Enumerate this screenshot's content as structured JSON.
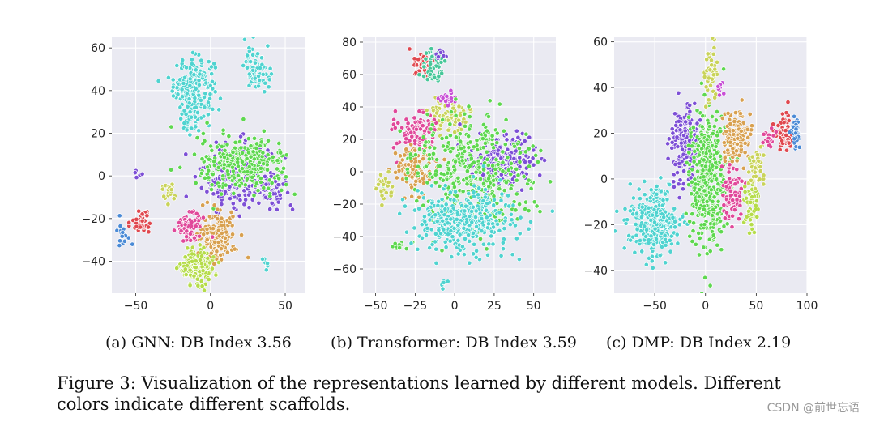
{
  "palette": {
    "cyan": "#4fd3d0",
    "purple": "#7d4fd6",
    "green": "#5ed84f",
    "orange": "#d8a04f",
    "lime": "#b5dc4a",
    "pink": "#e0489a",
    "red": "#e0484f",
    "blue": "#4a8ad6",
    "yellowgreen": "#c9d35a",
    "teal": "#47c79a",
    "magenta": "#c84fd6"
  },
  "chart_data": [
    {
      "type": "scatter",
      "caption": "(a) GNN: DB Index 3.56",
      "xlim": [
        -66,
        63
      ],
      "ylim": [
        -55,
        65
      ],
      "xticks": [
        -50,
        0,
        50
      ],
      "xtick_labels": [
        "−50",
        "0",
        "50"
      ],
      "yticks": [
        -40,
        -20,
        0,
        20,
        40,
        60
      ],
      "ytick_labels": [
        "−40",
        "−20",
        "0",
        "20",
        "40",
        "60"
      ],
      "grid": true,
      "clusters": [
        {
          "color": "cyan",
          "cx": -11,
          "cy": 42,
          "sx": 8,
          "sy": 8,
          "n": 200
        },
        {
          "color": "cyan",
          "cx": -14,
          "cy": 27,
          "sx": 4,
          "sy": 4,
          "n": 40
        },
        {
          "color": "cyan",
          "cx": 31,
          "cy": 50,
          "sx": 5,
          "sy": 6,
          "n": 80
        },
        {
          "color": "cyan",
          "cx": 37,
          "cy": -41,
          "sx": 1.5,
          "sy": 1.5,
          "n": 8
        },
        {
          "color": "purple",
          "cx": 18,
          "cy": 0,
          "sx": 14,
          "sy": 9,
          "n": 230
        },
        {
          "color": "purple",
          "cx": 40,
          "cy": -5,
          "sx": 6,
          "sy": 6,
          "n": 60
        },
        {
          "color": "purple",
          "cx": -49,
          "cy": 1,
          "sx": 1.5,
          "sy": 1.5,
          "n": 5
        },
        {
          "color": "green",
          "cx": 22,
          "cy": 5,
          "sx": 18,
          "sy": 8,
          "n": 280
        },
        {
          "color": "orange",
          "cx": 5,
          "cy": -28,
          "sx": 7,
          "sy": 7,
          "n": 150
        },
        {
          "color": "lime",
          "cx": -9,
          "cy": -42,
          "sx": 7,
          "sy": 5,
          "n": 140
        },
        {
          "color": "pink",
          "cx": -14,
          "cy": -24,
          "sx": 5,
          "sy": 4,
          "n": 80
        },
        {
          "color": "red",
          "cx": -46,
          "cy": -22,
          "sx": 4,
          "sy": 3,
          "n": 40
        },
        {
          "color": "blue",
          "cx": -58,
          "cy": -27,
          "sx": 3,
          "sy": 3,
          "n": 20
        },
        {
          "color": "yellowgreen",
          "cx": -27,
          "cy": -7,
          "sx": 2.5,
          "sy": 3,
          "n": 20
        }
      ]
    },
    {
      "type": "scatter",
      "caption": "(b) Transformer: DB Index 3.59",
      "xlim": [
        -58,
        64
      ],
      "ylim": [
        -75,
        83
      ],
      "xticks": [
        -50,
        -25,
        0,
        25,
        50
      ],
      "xtick_labels": [
        "−50",
        "−25",
        "0",
        "25",
        "50"
      ],
      "yticks": [
        -60,
        -40,
        -20,
        0,
        20,
        40,
        60,
        80
      ],
      "ytick_labels": [
        "−60",
        "−40",
        "−20",
        "0",
        "20",
        "40",
        "60",
        "80"
      ],
      "grid": true,
      "clusters": [
        {
          "color": "red",
          "cx": -21,
          "cy": 66,
          "sx": 4,
          "sy": 4,
          "n": 40
        },
        {
          "color": "teal",
          "cx": -13,
          "cy": 64,
          "sx": 4,
          "sy": 6,
          "n": 50
        },
        {
          "color": "purple",
          "cx": -8,
          "cy": 72,
          "sx": 2,
          "sy": 2,
          "n": 8
        },
        {
          "color": "yellowgreen",
          "cx": -4,
          "cy": 34,
          "sx": 7,
          "sy": 6,
          "n": 80
        },
        {
          "color": "magenta",
          "cx": -5,
          "cy": 45,
          "sx": 4,
          "sy": 3,
          "n": 20
        },
        {
          "color": "pink",
          "cx": -24,
          "cy": 25,
          "sx": 8,
          "sy": 8,
          "n": 100
        },
        {
          "color": "orange",
          "cx": -26,
          "cy": 2,
          "sx": 7,
          "sy": 8,
          "n": 100
        },
        {
          "color": "purple",
          "cx": 30,
          "cy": 5,
          "sx": 12,
          "sy": 10,
          "n": 220
        },
        {
          "color": "green",
          "cx": 10,
          "cy": 0,
          "sx": 25,
          "sy": 20,
          "n": 400
        },
        {
          "color": "cyan",
          "cx": 5,
          "cy": -30,
          "sx": 20,
          "sy": 12,
          "n": 350
        },
        {
          "color": "cyan",
          "cx": -7,
          "cy": -68,
          "sx": 2,
          "sy": 2,
          "n": 8
        },
        {
          "color": "green",
          "cx": -35,
          "cy": -45,
          "sx": 3,
          "sy": 1.5,
          "n": 10
        },
        {
          "color": "yellowgreen",
          "cx": -45,
          "cy": -10,
          "sx": 4,
          "sy": 5,
          "n": 25
        }
      ]
    },
    {
      "type": "scatter",
      "caption": "(c) DMP: DB Index 2.19",
      "xlim": [
        -90,
        100
      ],
      "ylim": [
        -50,
        62
      ],
      "xticks": [
        -50,
        0,
        50,
        100
      ],
      "xtick_labels": [
        "−50",
        "0",
        "50",
        "100"
      ],
      "yticks": [
        -40,
        -20,
        0,
        20,
        40,
        60
      ],
      "ytick_labels": [
        "−40",
        "−20",
        "0",
        "20",
        "40",
        "60"
      ],
      "grid": true,
      "clusters": [
        {
          "color": "cyan",
          "cx": -50,
          "cy": -20,
          "sx": 13,
          "sy": 9,
          "n": 350
        },
        {
          "color": "purple",
          "cx": -20,
          "cy": 15,
          "sx": 8,
          "sy": 10,
          "n": 200
        },
        {
          "color": "green",
          "cx": 2,
          "cy": 0,
          "sx": 10,
          "sy": 18,
          "n": 420
        },
        {
          "color": "yellowgreen",
          "cx": 5,
          "cy": 45,
          "sx": 4,
          "sy": 8,
          "n": 40
        },
        {
          "color": "orange",
          "cx": 30,
          "cy": 18,
          "sx": 8,
          "sy": 7,
          "n": 130
        },
        {
          "color": "pink",
          "cx": 27,
          "cy": -5,
          "sx": 6,
          "sy": 7,
          "n": 90
        },
        {
          "color": "lime",
          "cx": 45,
          "cy": -12,
          "sx": 5,
          "sy": 7,
          "n": 60
        },
        {
          "color": "yellowgreen",
          "cx": 50,
          "cy": 6,
          "sx": 5,
          "sy": 5,
          "n": 40
        },
        {
          "color": "red",
          "cx": 78,
          "cy": 20,
          "sx": 5,
          "sy": 5,
          "n": 60
        },
        {
          "color": "blue",
          "cx": 88,
          "cy": 22,
          "sx": 3,
          "sy": 4,
          "n": 35
        },
        {
          "color": "magenta",
          "cx": 15,
          "cy": 40,
          "sx": 2,
          "sy": 3,
          "n": 10
        },
        {
          "color": "pink",
          "cx": 63,
          "cy": 18,
          "sx": 3,
          "sy": 3,
          "n": 15
        }
      ]
    }
  ],
  "caption": {
    "text": "Figure 3: Visualization of the representations learned by different models. Different colors indicate different scaffolds."
  },
  "watermark": "CSDN @前世忘语"
}
